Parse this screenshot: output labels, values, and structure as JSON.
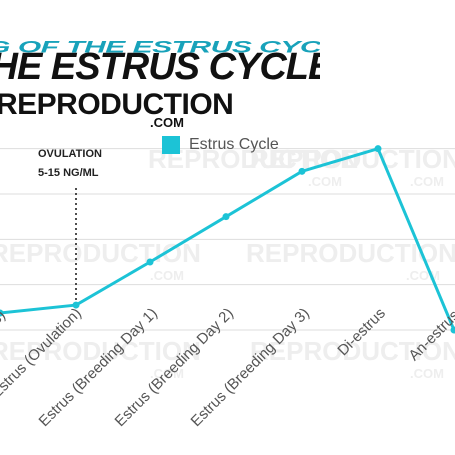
{
  "header": {
    "title": "OF THE ESTRUS CYCLE",
    "brand": "REPRODUCTION",
    "brand_sub": ".COM",
    "watermark": "REPRODUCTION",
    "watermark_sub": ".COM"
  },
  "annotation": {
    "line1": "OVULATION",
    "line2": "5-15 NG/ML"
  },
  "colors": {
    "series": "#1cc3d6",
    "title_shadow": "#0099b3",
    "grid": "#dddddd"
  },
  "chart_data": {
    "type": "line",
    "categories": [
      "",
      "Estrus (Ovulation)",
      "Estrus (Breeding Day 1)",
      "Estrus (Breeding Day 2)",
      "Estrus (Breeding Day 3)",
      "Di-estrus",
      "An-estrus"
    ],
    "visible_tick_labels": [
      "s)",
      "Estrus (Ovulation)",
      "Estrus (Breeding Day 1)",
      "Estrus (Breeding Day 2)",
      "Estrus (Breeding Day 3)",
      "Di-estrus",
      "An-estrus"
    ],
    "series": [
      {
        "name": "Estrus Cycle",
        "values": [
          1.5,
          2.2,
          6,
          10,
          14,
          16,
          0
        ]
      }
    ],
    "ylim": [
      0,
      18
    ],
    "title": "OF THE ESTRUS CYCLE",
    "xlabel": "",
    "ylabel": "",
    "grid": true,
    "legend": "top"
  }
}
